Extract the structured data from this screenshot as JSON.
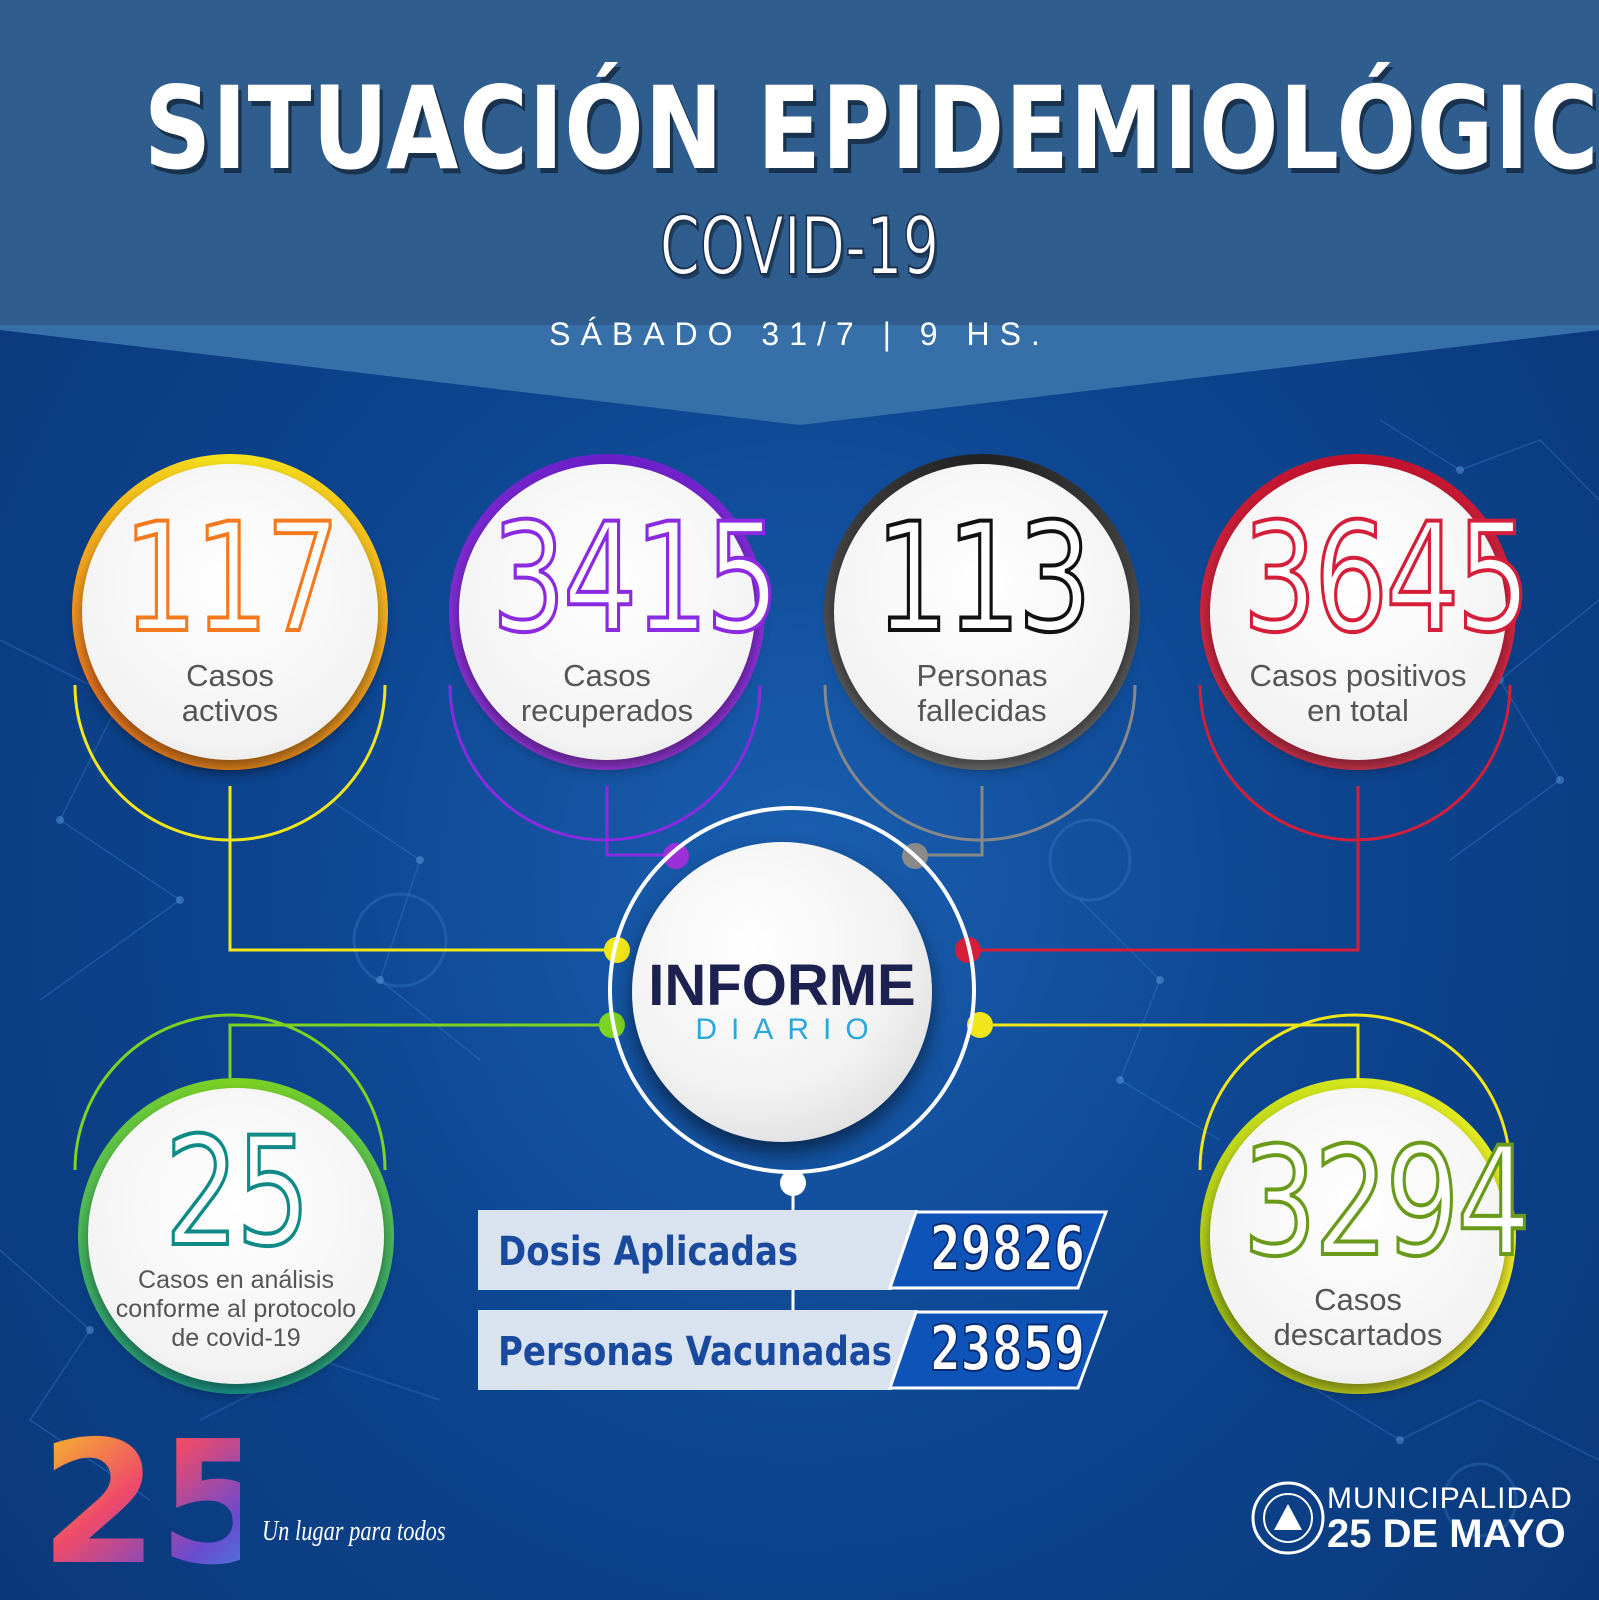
{
  "header": {
    "title": "SITUACIÓN EPIDEMIOLÓGICA",
    "subtitle": "COVID-19",
    "dateline": "SÁBADO 31/7 | 9 HS."
  },
  "stats": {
    "activos": {
      "value": "117",
      "label_1": "Casos",
      "label_2": "activos",
      "color": "#f47a20"
    },
    "recuperados": {
      "value": "3415",
      "label_1": "Casos",
      "label_2": "recuperados",
      "color": "#8a2be2"
    },
    "fallecidas": {
      "value": "113",
      "label_1": "Personas",
      "label_2": "fallecidas",
      "color": "#111111"
    },
    "positivos": {
      "value": "3645",
      "label_1": "Casos positivos",
      "label_2": "en total",
      "color": "#d51f3a"
    },
    "analisis": {
      "value": "25",
      "label_1": "Casos en análisis",
      "label_2": "conforme al protocolo",
      "label_3": "de covid-19",
      "color": "#0f8a86"
    },
    "descartados": {
      "value": "3294",
      "label_1": "Casos",
      "label_2": "descartados",
      "color": "#6a9a1a"
    }
  },
  "center": {
    "title": "INFORME",
    "subtitle": "DIARIO"
  },
  "vaccination": {
    "dosis_label": "Dosis Aplicadas",
    "dosis_value": "29826",
    "personas_label": "Personas Vacunadas",
    "personas_value": "23859"
  },
  "footer": {
    "logo_number": "25",
    "tagline": "Un lugar para todos",
    "municipality_line1": "MUNICIPALIDAD",
    "municipality_line2": "25 DE MAYO"
  },
  "colors": {
    "header_blue": "#2e5d8e",
    "background_blue": "#0d4590",
    "accent_yellow": "#f1e61a",
    "accent_green": "#7ed321"
  }
}
